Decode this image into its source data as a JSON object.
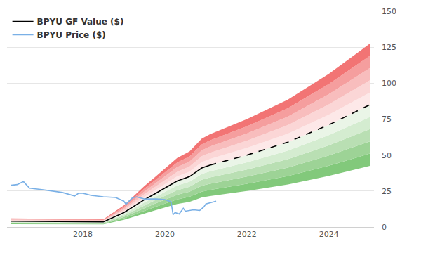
{
  "chart_data": {
    "type": "line",
    "xlim": [
      2016.15,
      2025.1
    ],
    "xticks": [
      2018,
      2020,
      2022,
      2024
    ],
    "ylim": [
      0,
      150
    ],
    "yticks": [
      0,
      25,
      50,
      75,
      100,
      125,
      150
    ],
    "grid": "y",
    "legend": "upper left",
    "series": [
      {
        "name": "BPYU GF Value ($)",
        "color": "#000000",
        "line_style": "solid",
        "x": [
          2016.25,
          2018.5,
          2019.0,
          2019.5,
          2019.75,
          2020.0,
          2020.3,
          2020.6,
          2020.9,
          2021.1
        ],
        "values": [
          4.0,
          3.6,
          10,
          19,
          23,
          27,
          32,
          35,
          41,
          43
        ]
      },
      {
        "name": "BPYU GF Value ($)",
        "color": "#000000",
        "line_style": "dashed",
        "x": [
          2021.1,
          2022,
          2023,
          2024,
          2025
        ],
        "values": [
          43,
          50,
          59,
          71,
          85
        ]
      },
      {
        "name": "BPYU Price ($)",
        "color": "#7ab0e6",
        "line_style": "solid",
        "x": [
          2016.25,
          2016.4,
          2016.55,
          2016.7,
          2017.0,
          2017.3,
          2017.5,
          2017.8,
          2017.9,
          2018.0,
          2018.2,
          2018.5,
          2018.8,
          2019.0,
          2019.05,
          2019.2,
          2019.3,
          2019.5,
          2019.8,
          2020.0,
          2020.15,
          2020.2,
          2020.25,
          2020.35,
          2020.45,
          2020.5,
          2020.7,
          2020.85,
          2020.95,
          2021.0,
          2021.15,
          2021.25
        ],
        "values": [
          29,
          29.5,
          31.6,
          27,
          26,
          25,
          24,
          21.6,
          23.5,
          23.5,
          22,
          21,
          20.5,
          18,
          15.8,
          20,
          21,
          19.5,
          19.5,
          19,
          17.5,
          8.6,
          10,
          9,
          13,
          11,
          12,
          11.5,
          14,
          16,
          17,
          18
        ]
      }
    ],
    "bands": {
      "x": [
        2016.25,
        2018.5,
        2019.0,
        2019.5,
        2019.75,
        2020.0,
        2020.3,
        2020.6,
        2020.9,
        2021.1,
        2022,
        2023,
        2024,
        2025
      ],
      "edges": [
        [
          6.0,
          5.4,
          15,
          28.5,
          34.5,
          40.5,
          48,
          52.5,
          61.5,
          64.5,
          75,
          88.5,
          106.5,
          127.5
        ],
        [
          5.6,
          5.0,
          14,
          26.6,
          32.2,
          37.8,
          44.8,
          49,
          57.4,
          60.2,
          70,
          82.6,
          99.4,
          119
        ],
        [
          5.2,
          4.7,
          13,
          24.7,
          29.9,
          35.1,
          41.6,
          45.5,
          53.3,
          55.9,
          65,
          76.7,
          92.3,
          110.5
        ],
        [
          4.8,
          4.3,
          12,
          22.8,
          27.6,
          32.4,
          38.4,
          42,
          49.2,
          51.6,
          60,
          70.8,
          85.2,
          102
        ],
        [
          4.4,
          4.0,
          11,
          20.9,
          25.3,
          29.7,
          35.2,
          38.5,
          45.1,
          47.3,
          55,
          64.9,
          78.1,
          93.5
        ],
        [
          4.0,
          3.6,
          10,
          19,
          23,
          27,
          32,
          35,
          41,
          43,
          50,
          59,
          71,
          85
        ],
        [
          3.6,
          3.2,
          9,
          17.1,
          20.7,
          24.3,
          28.8,
          31.5,
          36.9,
          38.7,
          45,
          53.1,
          63.9,
          76.5
        ],
        [
          3.2,
          2.9,
          8,
          15.2,
          18.4,
          21.6,
          25.6,
          28,
          32.8,
          34.4,
          40,
          47.2,
          56.8,
          68
        ],
        [
          2.8,
          2.5,
          7,
          13.3,
          16.1,
          18.9,
          22.4,
          24.5,
          28.7,
          30.1,
          35,
          41.3,
          49.7,
          59.5
        ],
        [
          2.4,
          2.2,
          6,
          11.4,
          13.8,
          16.2,
          19.2,
          21,
          24.6,
          25.8,
          30,
          35.4,
          42.6,
          51
        ],
        [
          2.0,
          1.8,
          5,
          9.5,
          11.5,
          13.5,
          16,
          17.5,
          20.5,
          21.5,
          25,
          29.5,
          35.5,
          42.5
        ]
      ],
      "colors": [
        "#f27474",
        "#f59e9e",
        "#f8bdbd",
        "#fbd6d6",
        "#fde8e8",
        "#eaf5e7",
        "#d4ecd0",
        "#b9dfb3",
        "#9dd396",
        "#82c97b"
      ]
    }
  }
}
